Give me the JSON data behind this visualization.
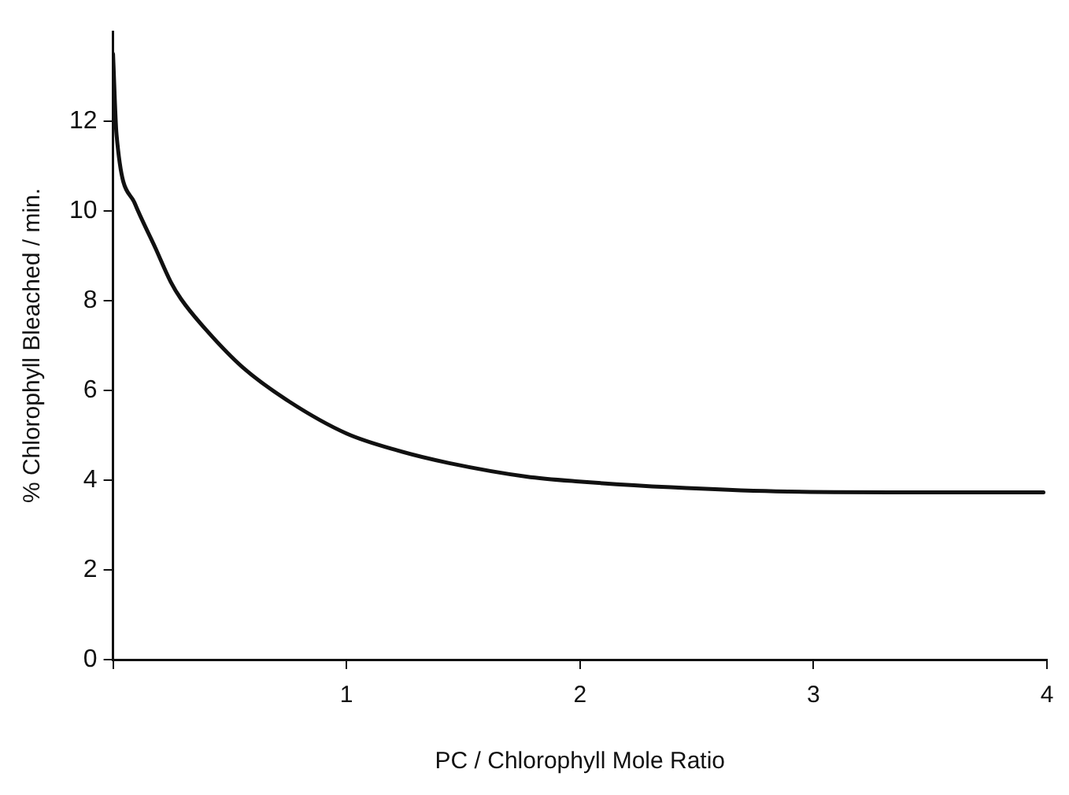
{
  "chart_data": {
    "type": "line",
    "xlabel": "PC / Chlorophyll Mole Ratio",
    "ylabel": "% Chlorophyll Bleached / min.",
    "x": [
      0,
      0.015,
      0.093,
      0.181,
      0.247,
      0.291,
      0.402,
      0.556,
      0.755,
      1.0,
      1.22,
      1.44,
      1.77,
      1.995,
      2.39,
      2.84,
      3.4,
      3.985
    ],
    "series": [
      {
        "color": "#111111",
        "values": [
          13.5,
          11.7,
          10.17,
          9.18,
          8.42,
          8.04,
          7.33,
          6.51,
          5.75,
          5.04,
          4.66,
          4.38,
          4.08,
          3.97,
          3.84,
          3.75,
          3.73,
          3.73
        ]
      }
    ],
    "xlim": [
      0,
      4
    ],
    "xticks": [
      {
        "value": 0,
        "label": null
      },
      1,
      2,
      3,
      4
    ],
    "ylim": [
      0,
      14
    ],
    "yticks": [
      0,
      2,
      4,
      6,
      8,
      10,
      12
    ],
    "grid": false,
    "legend": false,
    "marker": "none",
    "line_style": "solid"
  }
}
